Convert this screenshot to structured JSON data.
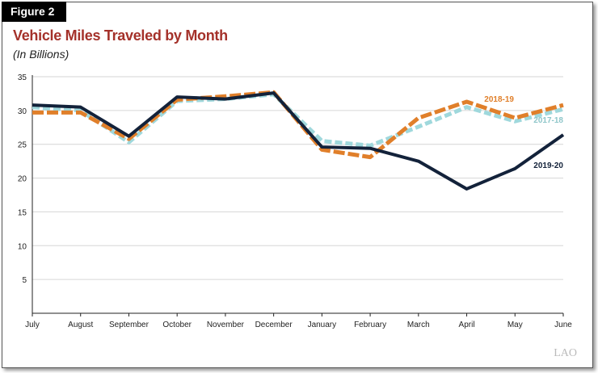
{
  "figure_label": "Figure 2",
  "logo_text": "LAO",
  "chart_data": {
    "type": "line",
    "title": "Vehicle Miles Traveled by Month",
    "subtitle": "(In Billions)",
    "xlabel": "",
    "ylabel": "",
    "ylim": [
      0,
      35
    ],
    "yticks": [
      5,
      10,
      15,
      20,
      25,
      30,
      35
    ],
    "grid": true,
    "legend": "inline labels",
    "categories": [
      "July",
      "August",
      "September",
      "October",
      "November",
      "December",
      "January",
      "February",
      "March",
      "April",
      "May",
      "June"
    ],
    "series": [
      {
        "name": "2017-18",
        "color": "#9fd8dc",
        "style": "dashed",
        "values": [
          30.5,
          30.0,
          25.3,
          31.4,
          31.7,
          32.4,
          25.5,
          24.8,
          27.6,
          30.5,
          28.4,
          30.2
        ]
      },
      {
        "name": "2018-19",
        "color": "#e07f2a",
        "style": "dashed",
        "values": [
          29.7,
          29.7,
          25.8,
          31.6,
          32.1,
          32.7,
          24.2,
          23.1,
          28.9,
          31.3,
          28.9,
          30.8
        ]
      },
      {
        "name": "2019-20",
        "color": "#13223a",
        "style": "solid",
        "values": [
          30.8,
          30.5,
          26.2,
          32.0,
          31.7,
          32.6,
          24.6,
          24.4,
          22.5,
          18.4,
          21.4,
          26.4
        ]
      }
    ]
  }
}
